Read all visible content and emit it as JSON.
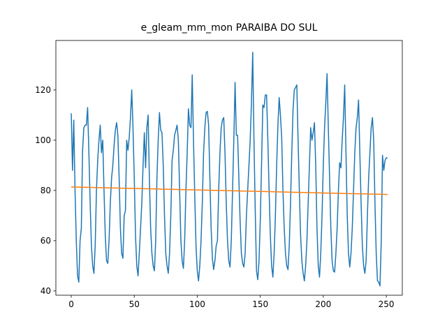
{
  "chart_data": {
    "type": "line",
    "title": "e_gleam_mm_mon PARAIBA DO SUL",
    "x": [
      0,
      1,
      2,
      3,
      4,
      5,
      6,
      7,
      8,
      9,
      10,
      11,
      12,
      13,
      14,
      15,
      16,
      17,
      18,
      19,
      20,
      21,
      22,
      23,
      24,
      25,
      26,
      27,
      28,
      29,
      30,
      31,
      32,
      33,
      34,
      35,
      36,
      37,
      38,
      39,
      40,
      41,
      42,
      43,
      44,
      45,
      46,
      47,
      48,
      49,
      50,
      51,
      52,
      53,
      54,
      55,
      56,
      57,
      58,
      59,
      60,
      61,
      62,
      63,
      64,
      65,
      66,
      67,
      68,
      69,
      70,
      71,
      72,
      73,
      74,
      75,
      76,
      77,
      78,
      79,
      80,
      81,
      82,
      83,
      84,
      85,
      86,
      87,
      88,
      89,
      90,
      91,
      92,
      93,
      94,
      95,
      96,
      97,
      98,
      99,
      100,
      101,
      102,
      103,
      104,
      105,
      106,
      107,
      108,
      109,
      110,
      111,
      112,
      113,
      114,
      115,
      116,
      117,
      118,
      119,
      120,
      121,
      122,
      123,
      124,
      125,
      126,
      127,
      128,
      129,
      130,
      131,
      132,
      133,
      134,
      135,
      136,
      137,
      138,
      139,
      140,
      141,
      142,
      143,
      144,
      145,
      146,
      147,
      148,
      149,
      150,
      151,
      152,
      153,
      154,
      155,
      156,
      157,
      158,
      159,
      160,
      161,
      162,
      163,
      164,
      165,
      166,
      167,
      168,
      169,
      170,
      171,
      172,
      173,
      174,
      175,
      176,
      177,
      178,
      179,
      180,
      181,
      182,
      183,
      184,
      185,
      186,
      187,
      188,
      189,
      190,
      191,
      192,
      193,
      194,
      195,
      196,
      197,
      198,
      199,
      200,
      201,
      202,
      203,
      204,
      205,
      206,
      207,
      208,
      209,
      210,
      211,
      212,
      213,
      214,
      215,
      216,
      217,
      218,
      219,
      220,
      221,
      222,
      223,
      224,
      225,
      226,
      227,
      228,
      229,
      230,
      231,
      232,
      233,
      234,
      235,
      236,
      237,
      238,
      239,
      240,
      241,
      242,
      243,
      244,
      245,
      246,
      247,
      248,
      249,
      250,
      251
    ],
    "series": [
      {
        "color": "#1f77b4",
        "values": [
          110.7,
          88,
          108,
          80,
          60,
          46,
          43.5,
          60,
          65,
          96,
          105,
          106,
          106,
          113,
          95,
          75,
          58,
          50,
          47,
          58,
          80,
          92,
          100,
          106,
          95,
          100,
          80,
          62,
          52,
          51,
          60,
          75,
          85,
          90,
          98,
          104,
          107,
          102,
          85,
          65,
          55,
          53,
          70,
          72,
          100,
          96,
          101,
          109,
          120,
          105,
          85,
          62,
          50,
          46,
          55,
          65,
          75,
          90,
          103,
          89,
          105,
          110,
          85,
          65,
          55,
          50,
          48,
          60,
          85,
          100,
          111,
          104,
          103,
          90,
          70,
          55,
          50,
          47,
          55,
          70,
          92,
          96,
          102,
          104,
          106,
          100,
          80,
          60,
          52,
          49,
          60,
          80,
          95,
          112.5,
          106,
          105,
          126,
          100,
          78,
          58,
          48,
          44,
          50,
          60,
          75,
          95,
          105,
          111,
          111.5,
          106,
          85,
          65,
          53,
          48.5,
          52,
          58,
          60,
          80,
          95,
          105,
          108,
          109,
          95,
          75,
          60,
          52,
          49.5,
          60,
          80,
          100,
          123,
          102,
          102,
          85,
          68,
          55,
          51,
          49.5,
          55,
          70,
          80,
          90,
          100,
          115,
          135,
          100,
          72,
          48,
          44.5,
          52,
          68,
          90,
          114,
          113,
          118,
          118,
          100,
          80,
          62,
          50,
          45.5,
          55,
          70,
          90,
          106,
          117,
          110,
          101,
          80,
          65,
          55,
          50,
          48.5,
          58,
          75,
          95,
          112,
          120,
          121,
          122,
          100,
          80,
          62,
          52,
          47,
          44,
          50,
          60,
          75,
          90,
          105,
          100,
          103,
          107,
          90,
          65,
          50,
          45.5,
          55,
          70,
          90,
          105,
          115,
          126.5,
          105,
          85,
          65,
          52,
          48,
          47.5,
          55,
          65,
          80,
          91,
          89,
          100,
          109,
          122,
          95,
          70,
          55,
          49.5,
          55,
          65,
          80,
          95,
          105,
          109,
          116,
          95,
          75,
          58,
          50,
          47,
          52,
          70,
          85,
          95,
          105,
          109,
          100,
          75,
          55,
          44,
          43.5,
          42,
          60,
          94,
          88,
          92,
          93,
          93
        ]
      },
      {
        "color": "#ff7f0e",
        "x": [
          0,
          251
        ],
        "values": [
          81.4,
          78.4
        ]
      }
    ],
    "xlim": [
      -12.2,
      262.7
    ],
    "ylim": [
      38.3,
      139.7
    ],
    "xticks": [
      0,
      50,
      100,
      150,
      200,
      250
    ],
    "yticks": [
      40,
      60,
      80,
      100,
      120
    ]
  }
}
